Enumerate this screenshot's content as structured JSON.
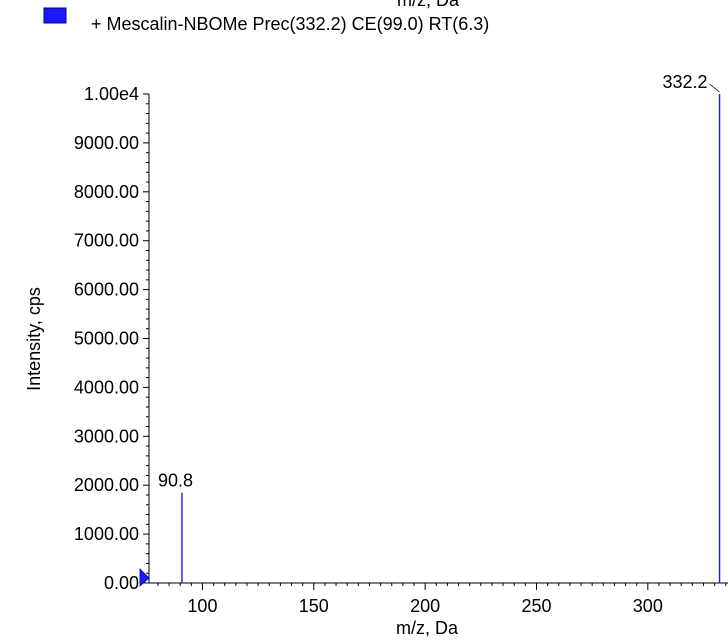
{
  "chart_data": {
    "type": "bar",
    "title": "+ Mescalin-NBOMe Prec(332.2) CE(99.0) RT(6.3)",
    "top_cut_label": "m/z, Da",
    "xlabel": "m/z, Da",
    "ylabel": "Intensity, cps",
    "xlim": [
      76,
      336
    ],
    "ylim": [
      0,
      10000
    ],
    "x_ticks": [
      100,
      150,
      200,
      250,
      300
    ],
    "x_tick_labels": [
      "100",
      "150",
      "200",
      "250",
      "300"
    ],
    "y_ticks": [
      0,
      1000,
      2000,
      3000,
      4000,
      5000,
      6000,
      7000,
      8000,
      9000,
      10000
    ],
    "y_tick_labels": [
      "0.00",
      "1000.00",
      "2000.00",
      "3000.00",
      "4000.00",
      "5000.00",
      "6000.00",
      "7000.00",
      "8000.00",
      "9000.00",
      "1.00e4"
    ],
    "series": [
      {
        "name": "+ Mescalin-NBOMe Prec(332.2) CE(99.0) RT(6.3)",
        "color": "#1a1aff",
        "peaks": [
          {
            "mz": 90.8,
            "intensity": 1850,
            "label": "90.8"
          },
          {
            "mz": 332.2,
            "intensity": 10000,
            "label": "332.2"
          }
        ]
      }
    ],
    "legend_position": "top-left",
    "grid": false
  }
}
